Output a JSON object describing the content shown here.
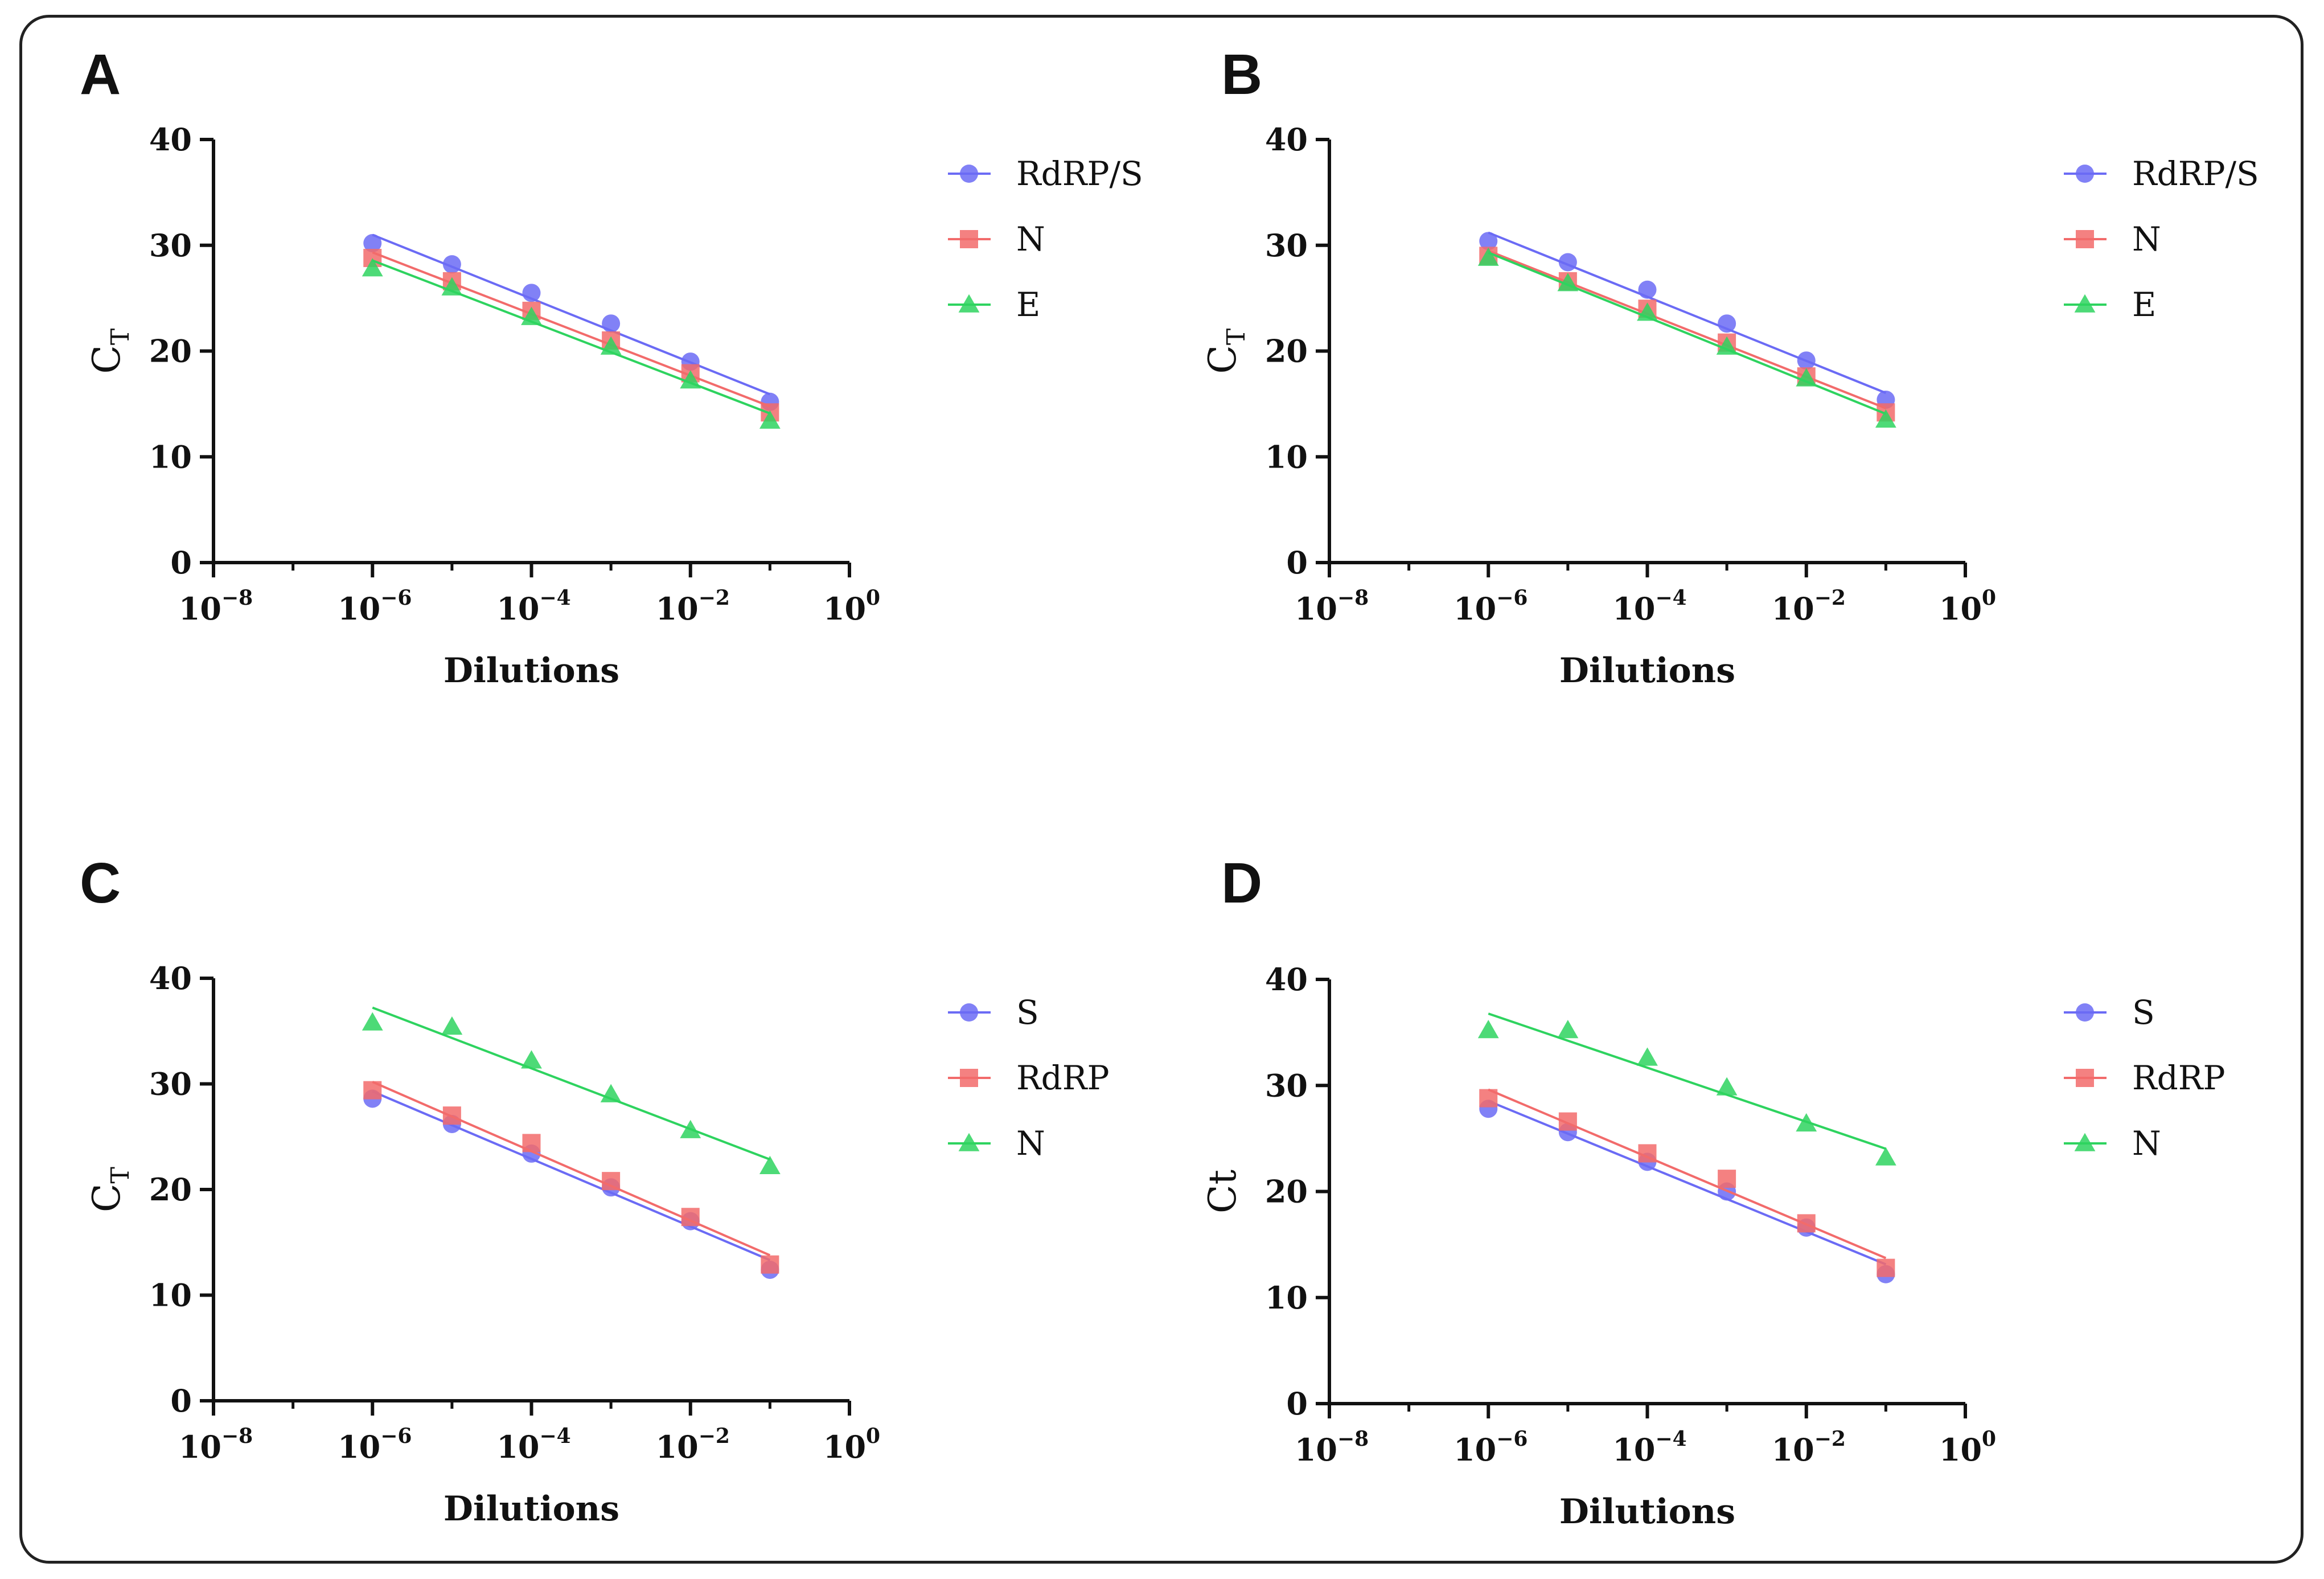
{
  "chart_data": [
    {
      "panel": "A",
      "type": "scatter",
      "xlabel": "Dilutions",
      "ylabel": "C",
      "ylabel_sub": "T",
      "xscale": "log",
      "xlim": [
        1e-08,
        1
      ],
      "ylim": [
        0,
        40
      ],
      "xticks": [
        {
          "base": "10",
          "exp": "−8"
        },
        {
          "base": "10",
          "exp": "−6"
        },
        {
          "base": "10",
          "exp": "−4"
        },
        {
          "base": "10",
          "exp": "−2"
        },
        {
          "base": "10",
          "exp": "0"
        }
      ],
      "yticks": [
        "0",
        "10",
        "20",
        "30",
        "40"
      ],
      "legend_position": "right",
      "x": [
        1e-06,
        1e-05,
        0.0001,
        0.001,
        0.01,
        0.1
      ],
      "series": [
        {
          "name": "RdRP/S",
          "marker": "circle",
          "color": "#6b6bf5",
          "values": [
            30.2,
            28.2,
            25.5,
            22.6,
            19.0,
            15.2
          ]
        },
        {
          "name": "N",
          "marker": "square",
          "color": "#f26b6b",
          "values": [
            28.8,
            26.6,
            23.8,
            21.0,
            17.9,
            14.2
          ]
        },
        {
          "name": "E",
          "marker": "triangle",
          "color": "#2ed35f",
          "values": [
            27.8,
            26.0,
            23.2,
            20.4,
            17.2,
            13.4
          ]
        }
      ]
    },
    {
      "panel": "B",
      "type": "scatter",
      "xlabel": "Dilutions",
      "ylabel": "C",
      "ylabel_sub": "T",
      "xscale": "log",
      "xlim": [
        1e-08,
        1
      ],
      "ylim": [
        0,
        40
      ],
      "xticks": [
        {
          "base": "10",
          "exp": "−8"
        },
        {
          "base": "10",
          "exp": "−6"
        },
        {
          "base": "10",
          "exp": "−4"
        },
        {
          "base": "10",
          "exp": "−2"
        },
        {
          "base": "10",
          "exp": "0"
        }
      ],
      "yticks": [
        "0",
        "10",
        "20",
        "30",
        "40"
      ],
      "legend_position": "right",
      "x": [
        1e-06,
        1e-05,
        0.0001,
        0.001,
        0.01,
        0.1
      ],
      "series": [
        {
          "name": "RdRP/S",
          "marker": "circle",
          "color": "#6b6bf5",
          "values": [
            30.4,
            28.4,
            25.8,
            22.6,
            19.1,
            15.4
          ]
        },
        {
          "name": "N",
          "marker": "square",
          "color": "#f26b6b",
          "values": [
            29.0,
            26.6,
            24.0,
            20.8,
            17.6,
            14.2
          ]
        },
        {
          "name": "E",
          "marker": "triangle",
          "color": "#2ed35f",
          "values": [
            28.8,
            26.4,
            23.6,
            20.4,
            17.4,
            13.5
          ]
        }
      ]
    },
    {
      "panel": "C",
      "type": "scatter",
      "xlabel": "Dilutions",
      "ylabel": "C",
      "ylabel_sub": "T",
      "xscale": "log",
      "xlim": [
        1e-08,
        1
      ],
      "ylim": [
        0,
        40
      ],
      "xticks": [
        {
          "base": "10",
          "exp": "−8"
        },
        {
          "base": "10",
          "exp": "−6"
        },
        {
          "base": "10",
          "exp": "−4"
        },
        {
          "base": "10",
          "exp": "−2"
        },
        {
          "base": "10",
          "exp": "0"
        }
      ],
      "yticks": [
        "0",
        "10",
        "20",
        "30",
        "40"
      ],
      "legend_position": "right",
      "x": [
        1e-06,
        1e-05,
        0.0001,
        0.001,
        0.01,
        0.1
      ],
      "series": [
        {
          "name": "S",
          "marker": "circle",
          "color": "#6b6bf5",
          "values": [
            28.6,
            26.2,
            23.4,
            20.2,
            17.0,
            12.4
          ]
        },
        {
          "name": "RdRP",
          "marker": "square",
          "color": "#f26b6b",
          "values": [
            29.4,
            27.0,
            24.4,
            20.8,
            17.4,
            12.9
          ]
        },
        {
          "name": "N",
          "marker": "triangle",
          "color": "#2ed35f",
          "values": [
            35.8,
            35.4,
            32.2,
            29.0,
            25.6,
            22.2
          ]
        }
      ]
    },
    {
      "panel": "D",
      "type": "scatter",
      "xlabel": "Dilutions",
      "ylabel": "Ct",
      "ylabel_sub": "",
      "xscale": "log",
      "xlim": [
        1e-08,
        1
      ],
      "ylim": [
        0,
        40
      ],
      "xticks": [
        {
          "base": "10",
          "exp": "−8"
        },
        {
          "base": "10",
          "exp": "−6"
        },
        {
          "base": "10",
          "exp": "−4"
        },
        {
          "base": "10",
          "exp": "−2"
        },
        {
          "base": "10",
          "exp": "0"
        }
      ],
      "yticks": [
        "0",
        "10",
        "20",
        "30",
        "40"
      ],
      "legend_position": "right",
      "x": [
        1e-06,
        1e-05,
        0.0001,
        0.001,
        0.01,
        0.1
      ],
      "series": [
        {
          "name": "S",
          "marker": "circle",
          "color": "#6b6bf5",
          "values": [
            27.8,
            25.6,
            22.8,
            20.0,
            16.6,
            12.2
          ]
        },
        {
          "name": "RdRP",
          "marker": "square",
          "color": "#f26b6b",
          "values": [
            28.8,
            26.6,
            23.6,
            21.2,
            17.0,
            12.8
          ]
        },
        {
          "name": "N",
          "marker": "triangle",
          "color": "#2ed35f",
          "values": [
            35.2,
            35.2,
            32.6,
            29.8,
            26.4,
            23.2
          ]
        }
      ]
    }
  ]
}
